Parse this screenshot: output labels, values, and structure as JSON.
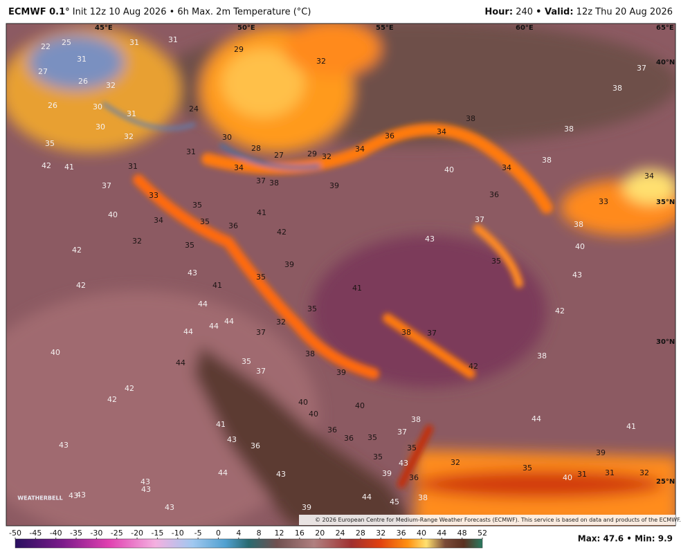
{
  "header": {
    "model": "ECMWF 0.1°",
    "title": "Init 12z 10 Aug 2026 • 6h Max. 2m Temperature (°C)",
    "hour_label": "Hour:",
    "hour": "240",
    "valid_label": "• Valid:",
    "valid": "12z Thu 20 Aug 2026"
  },
  "map": {
    "lon_labels": [
      "45°E",
      "50°E",
      "55°E",
      "60°E",
      "65°E"
    ],
    "lat_labels": [
      "40°N",
      "35°N",
      "30°N",
      "25°N"
    ],
    "temps": [
      22,
      25,
      31,
      31,
      29,
      32,
      37,
      31,
      27,
      26,
      32,
      38,
      26,
      30,
      31,
      24,
      30,
      38,
      34,
      38,
      32,
      30,
      36,
      35,
      28,
      34,
      31,
      27,
      29,
      32,
      38,
      42,
      41,
      31,
      34,
      40,
      34,
      37,
      38,
      39,
      34,
      37,
      36,
      33,
      33,
      35,
      41,
      40,
      34,
      35,
      36,
      37,
      38,
      42,
      32,
      43,
      35,
      40,
      42,
      35,
      39,
      43,
      43,
      35,
      42,
      41,
      41,
      44,
      35,
      42,
      44,
      44,
      32,
      44,
      37,
      38,
      37,
      40,
      38,
      38,
      35,
      44,
      37,
      39,
      42,
      42,
      42,
      40,
      40,
      40,
      38,
      44,
      41,
      41,
      36,
      37,
      43,
      36,
      35,
      43,
      36,
      35,
      39,
      35,
      32,
      43,
      36,
      35,
      44,
      43,
      39,
      40,
      31,
      31,
      32,
      43,
      43,
      43,
      43,
      44,
      45,
      38,
      43,
      39
    ],
    "copyright": "© 2026 European Centre for Medium-Range Weather Forecasts (ECMWF). This service is based on data and products of the ECMWF.",
    "logo": "WEATHERBELL"
  },
  "legend": {
    "ticks": [
      -50,
      -45,
      -40,
      -35,
      -30,
      -25,
      -20,
      -15,
      -10,
      -5,
      0,
      4,
      8,
      12,
      16,
      20,
      24,
      28,
      32,
      36,
      40,
      44,
      48,
      52
    ]
  },
  "footer": {
    "stats": "Max: 47.6 • Min: 9.9"
  }
}
